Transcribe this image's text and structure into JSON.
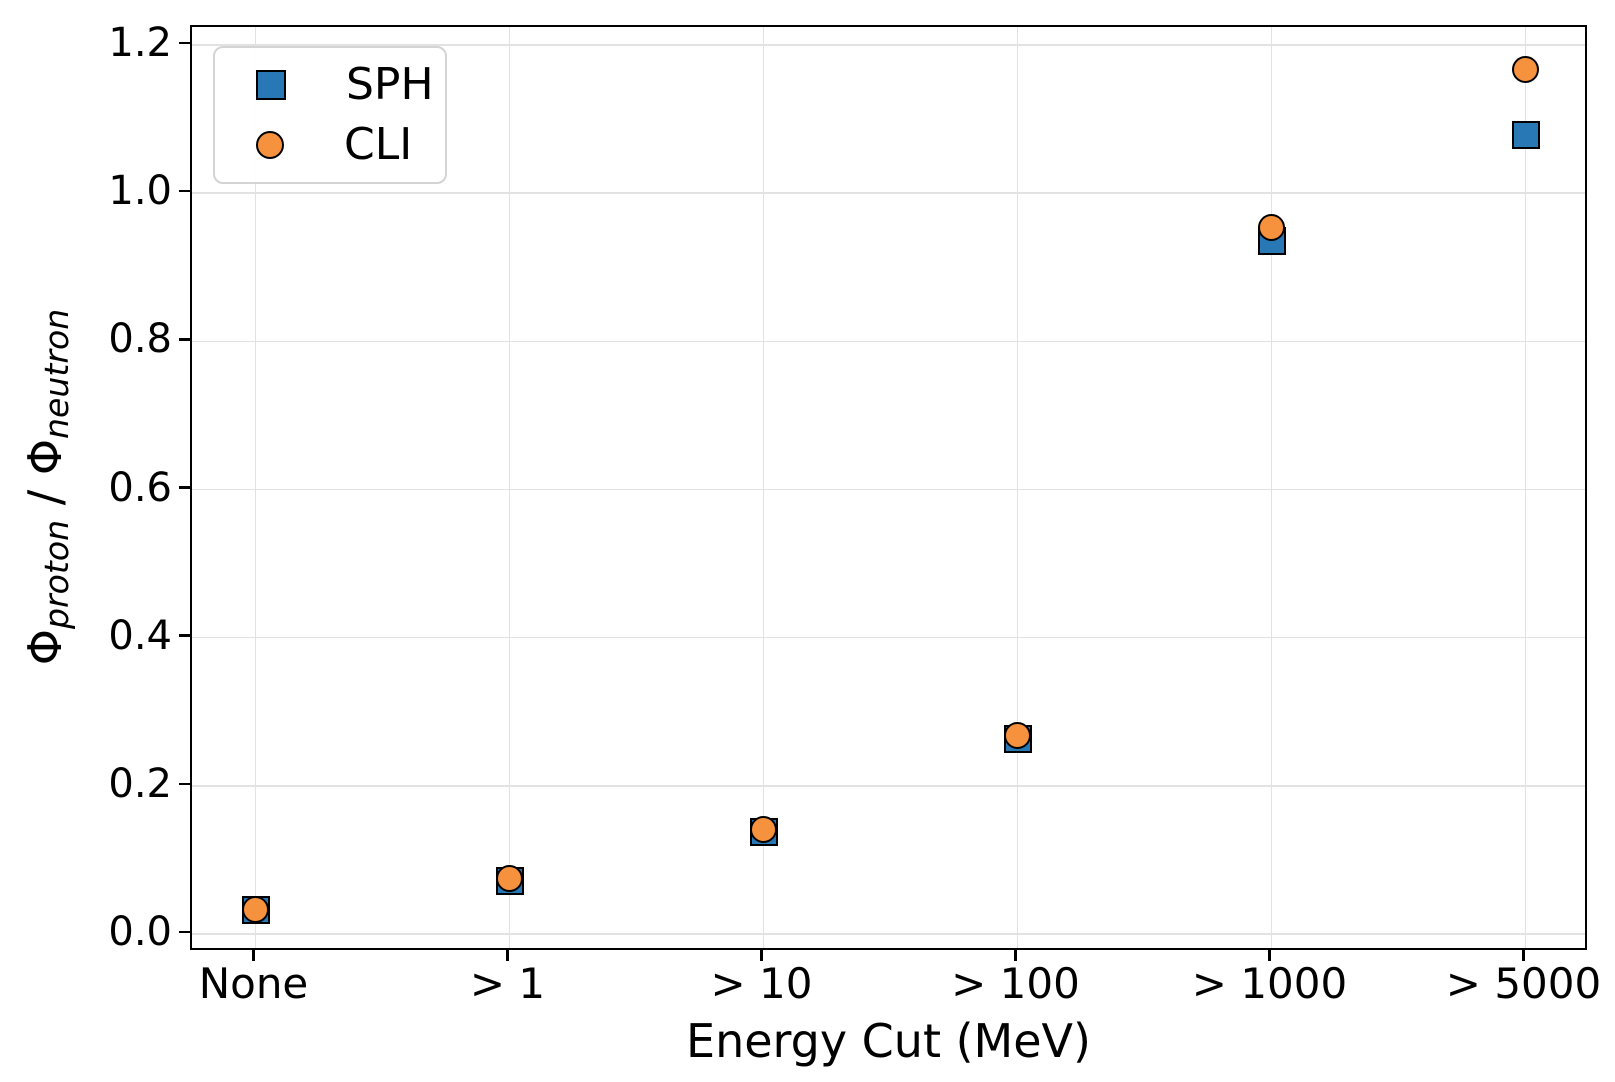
{
  "chart_data": {
    "type": "scatter",
    "title": "",
    "xlabel": "Energy Cut (MeV)",
    "ylabel": {
      "full": "Φ_proton / Φ_neutron",
      "phi1": "Φ",
      "sub1": "proton",
      "sep": " / ",
      "phi2": "Φ",
      "sub2": "neutron"
    },
    "categories": [
      "None",
      "> 1",
      "> 10",
      "> 100",
      "> 1000",
      "> 5000"
    ],
    "series": [
      {
        "name": "SPH",
        "marker": "square",
        "fill": "#2878b5",
        "edge": "#000000",
        "values": [
          0.032,
          0.072,
          0.138,
          0.263,
          0.935,
          1.078
        ]
      },
      {
        "name": "CLI",
        "marker": "circle",
        "fill": "#f6923e",
        "edge": "#000000",
        "values": [
          0.034,
          0.075,
          0.141,
          0.268,
          0.954,
          1.166
        ]
      }
    ],
    "yticks": {
      "values": [
        0.0,
        0.2,
        0.4,
        0.6,
        0.8,
        1.0,
        1.2
      ],
      "labels": [
        "0.0",
        "0.2",
        "0.4",
        "0.6",
        "0.8",
        "1.0",
        "1.2"
      ]
    },
    "ylim": [
      -0.024,
      1.224
    ],
    "grid": true,
    "legend": {
      "position": "upper left",
      "entries": [
        {
          "label": "SPH",
          "marker": "square",
          "color": "#2878b5"
        },
        {
          "label": "CLI",
          "marker": "circle",
          "color": "#f6923e"
        }
      ]
    },
    "colors": {
      "grid": "#e2e2e2",
      "spine": "#000000",
      "background": "#ffffff"
    }
  }
}
